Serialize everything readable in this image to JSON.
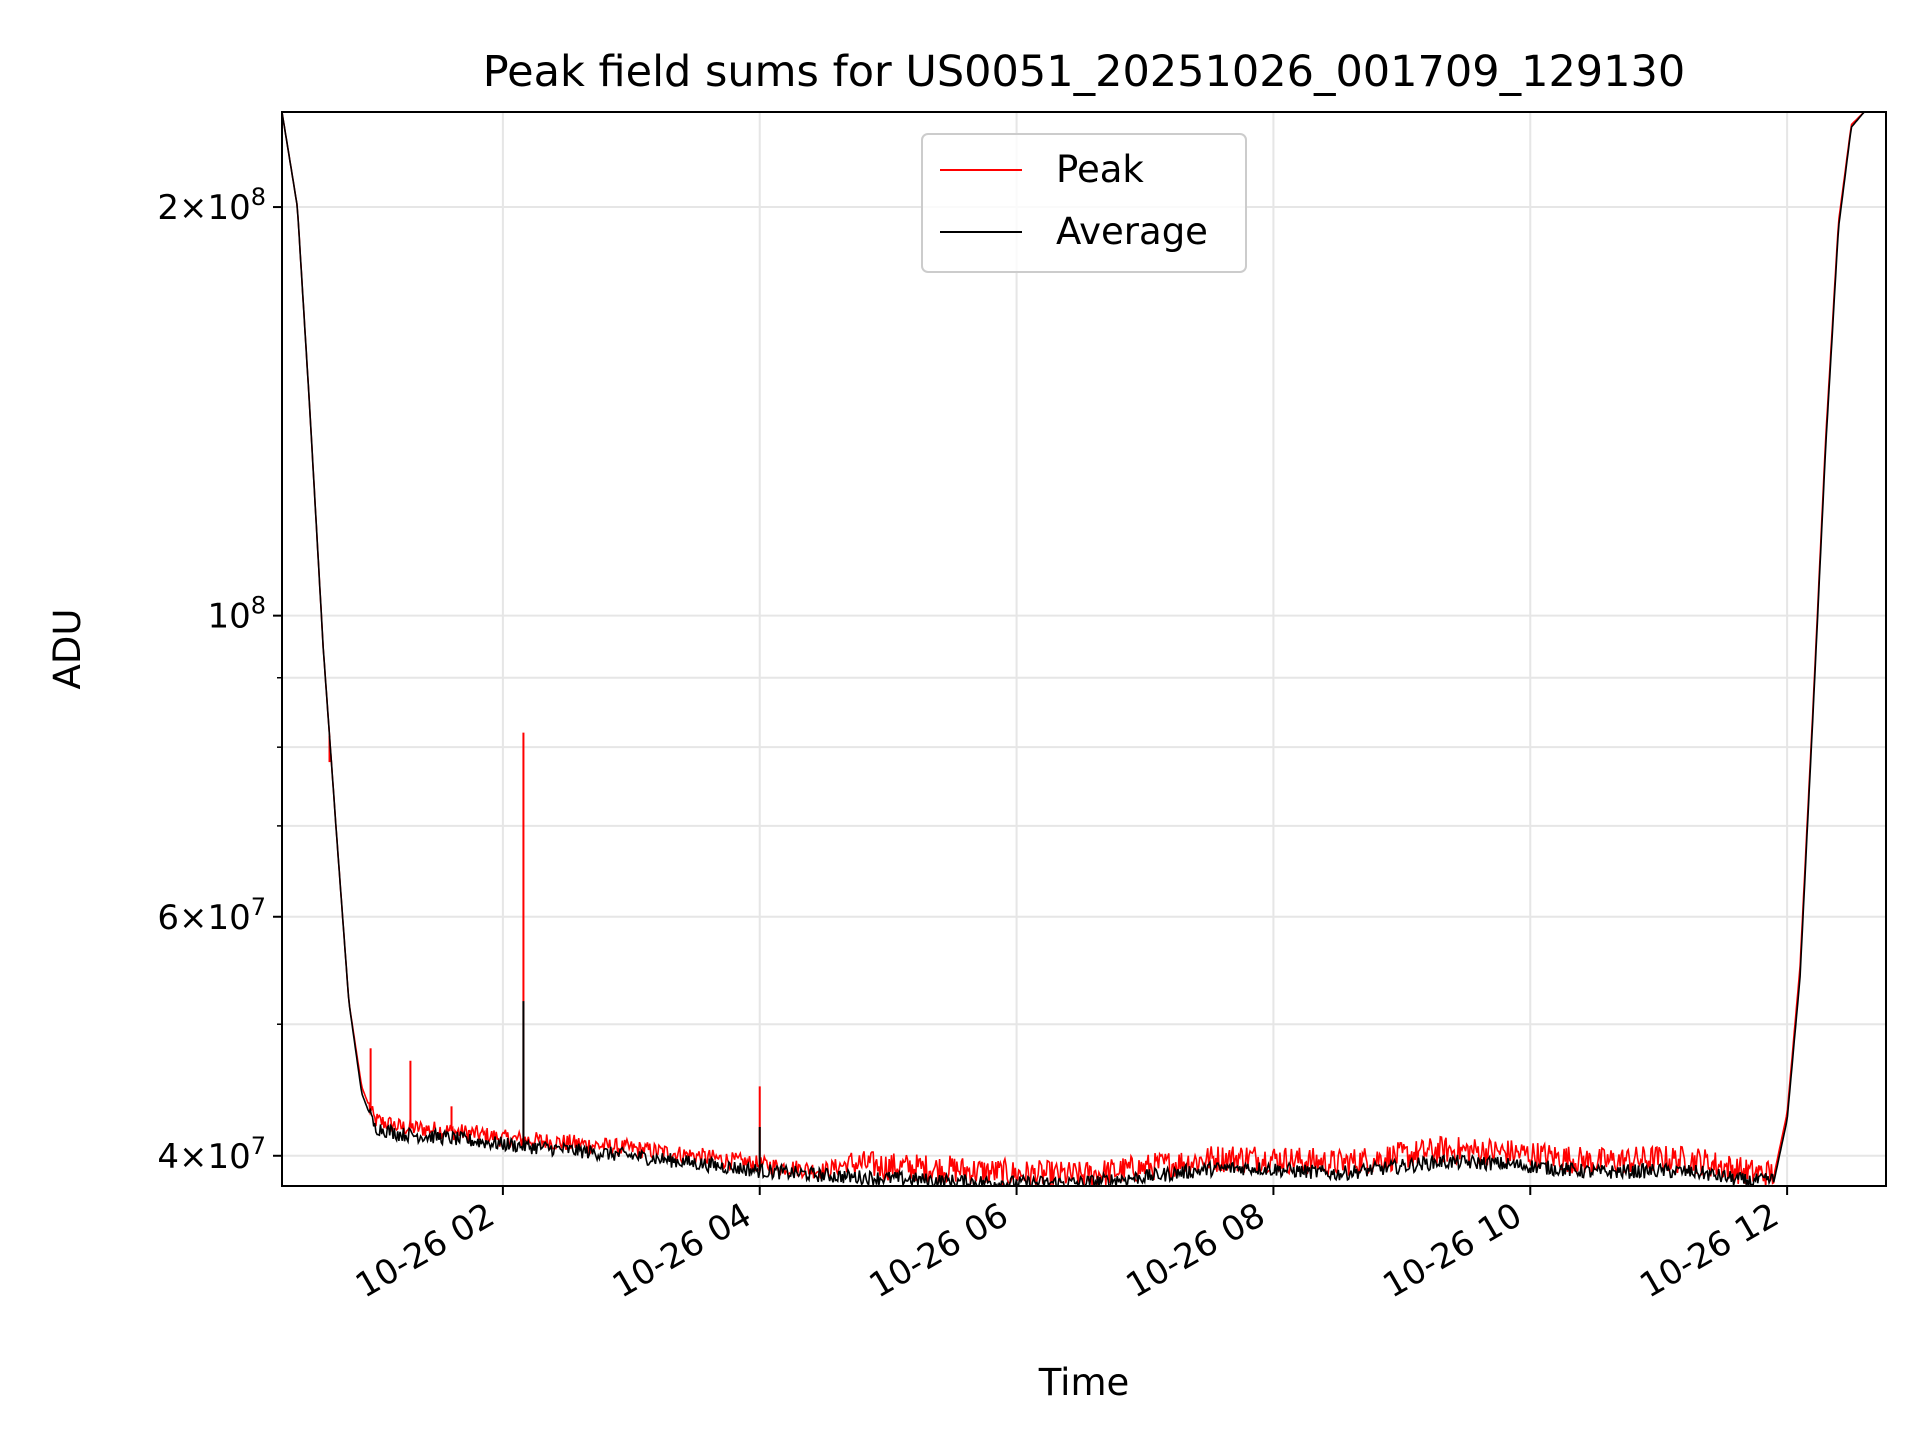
{
  "chart_data": {
    "type": "line",
    "title": "Peak field sums for US0051_20251026_001709_129130",
    "xlabel": "Time",
    "ylabel": "ADU",
    "x_unit": "hours since 10-26 00:00",
    "xlim": [
      0.28,
      12.77
    ],
    "ylim": [
      38000000,
      235000000
    ],
    "yscale": "log",
    "grid": true,
    "legend_position": "top-center",
    "x_ticks": [
      {
        "value": 2,
        "label": "10-26 02"
      },
      {
        "value": 4,
        "label": "10-26 04"
      },
      {
        "value": 6,
        "label": "10-26 06"
      },
      {
        "value": 8,
        "label": "10-26 08"
      },
      {
        "value": 10,
        "label": "10-26 10"
      },
      {
        "value": 12,
        "label": "10-26 12"
      }
    ],
    "y_major_ticks": [
      {
        "value": 40000000,
        "base": "4",
        "exp": "7"
      },
      {
        "value": 60000000,
        "base": "6",
        "exp": "7"
      },
      {
        "value": 100000000,
        "base": "",
        "exp": "8"
      },
      {
        "value": 200000000,
        "base": "2",
        "exp": "8"
      }
    ],
    "y_minor_gridlines": [
      50000000,
      70000000,
      80000000,
      90000000
    ],
    "series": [
      {
        "name": "Peak",
        "color": "#ff0000",
        "x": [
          0.28,
          0.4,
          0.5,
          0.6,
          0.7,
          0.8,
          0.9,
          1.0,
          1.2,
          1.5,
          1.8,
          2.0,
          2.5,
          3.0,
          3.5,
          4.0,
          4.5,
          4.7,
          5.0,
          5.5,
          6.0,
          6.5,
          7.0,
          7.5,
          7.8,
          8.0,
          8.5,
          9.0,
          9.3,
          9.7,
          10.0,
          10.5,
          11.0,
          11.3,
          11.7,
          11.9,
          12.0,
          12.1,
          12.2,
          12.3,
          12.4,
          12.5,
          12.6,
          12.77
        ],
        "values": [
          235000000,
          200000000,
          140000000,
          95000000,
          70000000,
          52000000,
          45000000,
          42500000,
          42000000,
          41800000,
          41500000,
          41200000,
          40900000,
          40500000,
          40000000,
          39400000,
          39000000,
          39500000,
          39300000,
          39100000,
          38800000,
          38700000,
          39200000,
          39800000,
          39900000,
          39800000,
          39500000,
          40000000,
          40400000,
          40300000,
          40100000,
          39600000,
          39800000,
          39700000,
          38900000,
          38800000,
          43000000,
          55000000,
          85000000,
          135000000,
          195000000,
          230000000,
          235000000,
          235000000
        ],
        "spikes": [
          {
            "x": 0.65,
            "value": 78000000
          },
          {
            "x": 0.97,
            "value": 48000000
          },
          {
            "x": 1.28,
            "value": 47000000
          },
          {
            "x": 1.6,
            "value": 43500000
          },
          {
            "x": 2.16,
            "value": 82000000
          },
          {
            "x": 4.0,
            "value": 45000000
          }
        ]
      },
      {
        "name": "Average",
        "color": "#000000",
        "x": [
          0.28,
          0.4,
          0.5,
          0.6,
          0.7,
          0.8,
          0.9,
          1.0,
          1.2,
          1.5,
          1.8,
          2.0,
          2.5,
          3.0,
          3.5,
          4.0,
          4.5,
          4.7,
          5.0,
          5.5,
          6.0,
          6.5,
          7.0,
          7.5,
          7.8,
          8.0,
          8.5,
          9.0,
          9.3,
          9.7,
          10.0,
          10.5,
          11.0,
          11.3,
          11.7,
          11.9,
          12.0,
          12.1,
          12.2,
          12.3,
          12.4,
          12.5,
          12.6,
          12.77
        ],
        "values": [
          235000000,
          200000000,
          140000000,
          95000000,
          70000000,
          52000000,
          44500000,
          42000000,
          41500000,
          41300000,
          41000000,
          40800000,
          40400000,
          40000000,
          39500000,
          39000000,
          38700000,
          38600000,
          38500000,
          38300000,
          38200000,
          38200000,
          38600000,
          39100000,
          39200000,
          39100000,
          38800000,
          39300000,
          39600000,
          39500000,
          39300000,
          38900000,
          39000000,
          38900000,
          38300000,
          38400000,
          42500000,
          54000000,
          84000000,
          133000000,
          193000000,
          229000000,
          235000000,
          235000000
        ],
        "spikes": [
          {
            "x": 2.16,
            "value": 52000000
          },
          {
            "x": 4.0,
            "value": 42000000
          }
        ]
      }
    ]
  }
}
